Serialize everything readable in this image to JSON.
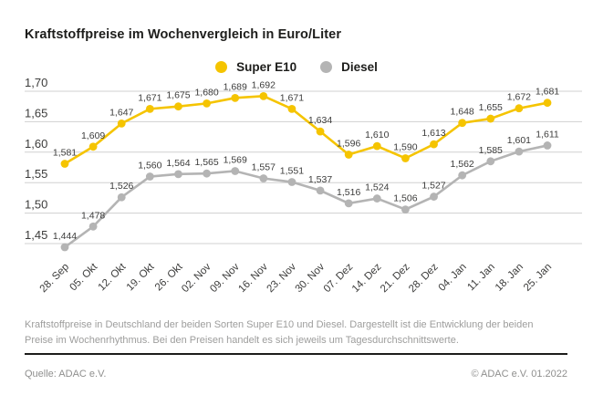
{
  "title": "Kraftstoffpreise im Wochenvergleich in Euro/Liter",
  "legend": [
    {
      "label": "Super E10",
      "color": "#F5C400"
    },
    {
      "label": "Diesel",
      "color": "#B4B4B4"
    }
  ],
  "chart_data": {
    "type": "line",
    "title": "Kraftstoffpreise im Wochenvergleich in Euro/Liter",
    "x": [
      "28. Sep",
      "05. Okt",
      "12. Okt",
      "19. Okt",
      "26. Okt",
      "02. Nov",
      "09. Nov",
      "16. Nov",
      "23. Nov",
      "30. Nov",
      "07. Dez",
      "14. Dez",
      "21. Dez",
      "28. Dez",
      "04. Jan",
      "11. Jan",
      "18. Jan",
      "25. Jan"
    ],
    "series": [
      {
        "name": "Super E10",
        "color": "#F5C400",
        "values": [
          1.581,
          1.609,
          1.647,
          1.671,
          1.675,
          1.68,
          1.689,
          1.692,
          1.671,
          1.634,
          1.596,
          1.61,
          1.59,
          1.613,
          1.648,
          1.655,
          1.672,
          1.681
        ]
      },
      {
        "name": "Diesel",
        "color": "#B4B4B4",
        "values": [
          1.444,
          1.478,
          1.526,
          1.56,
          1.564,
          1.565,
          1.569,
          1.557,
          1.551,
          1.537,
          1.516,
          1.524,
          1.506,
          1.527,
          1.562,
          1.585,
          1.601,
          1.611
        ]
      }
    ],
    "ylim": [
      1.45,
      1.7
    ],
    "yticks": [
      1.7,
      1.65,
      1.6,
      1.55,
      1.5,
      1.45
    ],
    "decimal_separator": ",",
    "unit": "Euro/Liter",
    "grid": true,
    "legend_position": "top-center",
    "colors": {
      "gridline": "#d0d0d0",
      "tick_text": "#3c3c3b",
      "data_label": "#3c3c3b"
    }
  },
  "description": "Kraftstoffpreise in Deutschland der beiden Sorten Super E10 und Diesel. Dargestellt ist die Entwicklung der beiden Preise im Wochenrhythmus. Bei den Preisen handelt es sich jeweils um Tagesdurchschnittswerte.",
  "footer": {
    "source": "Quelle: ADAC e.V.",
    "copyright": "© ADAC e.V. 01.2022"
  }
}
